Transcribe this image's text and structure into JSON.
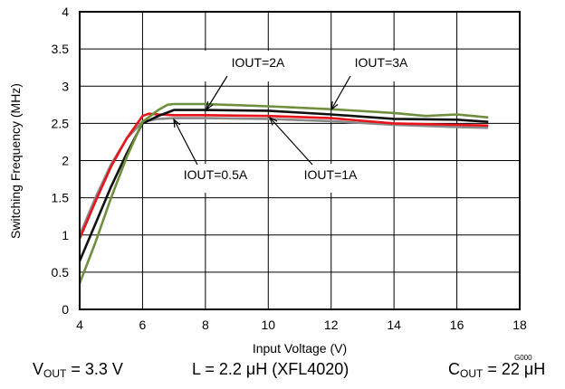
{
  "chart_data": {
    "type": "line",
    "title": "",
    "xlabel": "Input Voltage (V)",
    "ylabel": "Switching Frequency (MHz)",
    "xlim": [
      4,
      18
    ],
    "ylim": [
      0,
      4
    ],
    "xticks": [
      4,
      6,
      8,
      10,
      12,
      14,
      16,
      18
    ],
    "yticks": [
      0,
      0.5,
      1,
      1.5,
      2,
      2.5,
      3,
      3.5,
      4
    ],
    "grid": true,
    "colors": {
      "IOUT=0.5A": "#8a8a8a",
      "IOUT=1A": "#e8141c",
      "IOUT=2A": "#111111",
      "IOUT=3A": "#6f8f3c"
    },
    "series": [
      {
        "name": "IOUT=0.5A",
        "x": [
          4,
          4.5,
          5,
          5.5,
          6,
          6.5,
          7,
          8,
          10,
          12,
          14,
          16,
          17
        ],
        "y": [
          1.0,
          1.5,
          1.95,
          2.3,
          2.52,
          2.56,
          2.57,
          2.57,
          2.56,
          2.53,
          2.48,
          2.45,
          2.44
        ]
      },
      {
        "name": "IOUT=1A",
        "x": [
          4,
          4.5,
          5,
          5.5,
          6,
          6.2,
          6.5,
          7,
          8,
          10,
          12,
          14,
          16,
          17
        ],
        "y": [
          0.95,
          1.45,
          1.92,
          2.3,
          2.6,
          2.63,
          2.62,
          2.61,
          2.61,
          2.6,
          2.57,
          2.5,
          2.48,
          2.47
        ]
      },
      {
        "name": "IOUT=2A",
        "x": [
          4,
          4.5,
          5,
          5.5,
          6,
          6.5,
          7,
          8,
          10,
          12,
          14,
          16,
          17
        ],
        "y": [
          0.65,
          1.15,
          1.65,
          2.1,
          2.5,
          2.6,
          2.68,
          2.68,
          2.67,
          2.62,
          2.56,
          2.55,
          2.52
        ]
      },
      {
        "name": "IOUT=3A",
        "x": [
          4,
          4.5,
          5,
          5.5,
          6,
          6.5,
          6.8,
          7,
          8,
          10,
          12,
          14,
          15,
          16,
          17
        ],
        "y": [
          0.35,
          0.9,
          1.5,
          2.05,
          2.52,
          2.68,
          2.75,
          2.76,
          2.76,
          2.73,
          2.69,
          2.64,
          2.6,
          2.62,
          2.58
        ]
      }
    ],
    "annotations": [
      {
        "text": "IOUT=2A",
        "target": "IOUT=2A",
        "at": [
          8.0,
          2.68
        ]
      },
      {
        "text": "IOUT=3A",
        "target": "IOUT=3A",
        "at": [
          12.0,
          2.69
        ]
      },
      {
        "text": "IOUT=0.5A",
        "target": "IOUT=0.5A",
        "at": [
          7.0,
          2.57
        ]
      },
      {
        "text": "IOUT=1A",
        "target": "IOUT=1A",
        "at": [
          10.0,
          2.6
        ]
      }
    ],
    "figure_code": "G000"
  },
  "conditions": {
    "vout_symbol": "V",
    "vout_sub": "OUT",
    "vout_value": " = 3.3 V",
    "inductor": "L = 2.2 μH (XFL4020)",
    "cout_symbol": "C",
    "cout_sub": "OUT",
    "cout_value": " = 22 μH"
  }
}
